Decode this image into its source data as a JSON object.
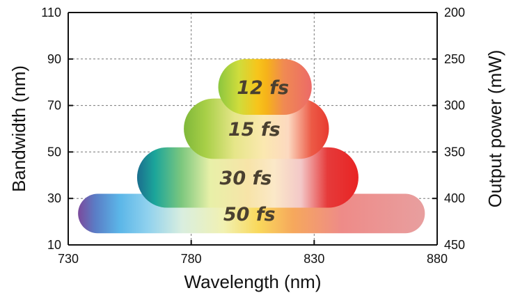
{
  "chart_data": {
    "type": "range-region",
    "title": "",
    "xlabel": "Wavelength (nm)",
    "ylabel": "Bandwidth (nm)",
    "y2label": "Output power (mW)",
    "xlim": [
      730,
      880
    ],
    "ylim": [
      10,
      110
    ],
    "y2lim": [
      450,
      200
    ],
    "x_ticks": [
      "730",
      "780",
      "830",
      "880"
    ],
    "y_ticks": [
      "10",
      "30",
      "50",
      "70",
      "90",
      "110"
    ],
    "y2_ticks": [
      "450",
      "400",
      "350",
      "300",
      "250",
      "200"
    ],
    "grid": "dashed, at x = 780, 830 and y = 30, 50, 70, 90",
    "legend": "none",
    "series": [
      {
        "label": "50 fs",
        "wavelength_range": [
          734,
          875
        ],
        "bandwidth_range": [
          15,
          32
        ]
      },
      {
        "label": "30 fs",
        "wavelength_range": [
          758,
          848
        ],
        "bandwidth_range": [
          26,
          52
        ]
      },
      {
        "label": "15 fs",
        "wavelength_range": [
          777,
          836
        ],
        "bandwidth_range": [
          47,
          73
        ]
      },
      {
        "label": "12 fs",
        "wavelength_range": [
          791,
          829
        ],
        "bandwidth_range": [
          66,
          90
        ]
      }
    ]
  }
}
